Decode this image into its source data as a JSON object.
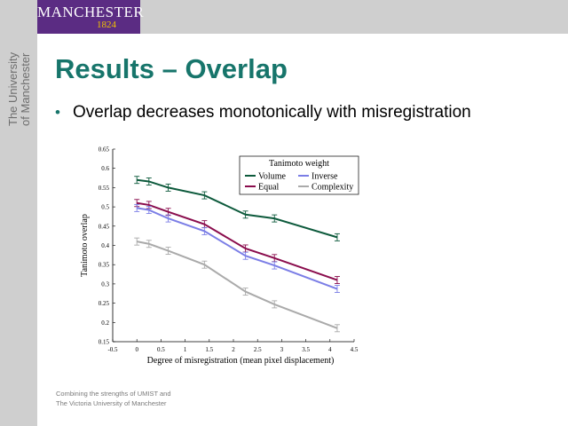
{
  "brand": {
    "logo_name": "MANCHESTER",
    "logo_year": "1824",
    "vertical_line1": "The University",
    "vertical_line2": "of Manchester"
  },
  "slide": {
    "title": "Results – Overlap",
    "bullet": "Overlap decreases monotonically with misregistration"
  },
  "footer": {
    "line1": "Combining the strengths of UMIST and",
    "line2": "The Victoria University of Manchester"
  },
  "colors": {
    "title": "#17756b",
    "bar": "#cfcfcf",
    "logo_bg": "#5b2c83",
    "logo_year": "#f2c200"
  },
  "chart_data": {
    "type": "line",
    "xlabel": "Degree of misregistration (mean pixel displacement)",
    "ylabel": "Tanimoto overlap",
    "xlim": [
      -0.5,
      4.5
    ],
    "ylim": [
      0.15,
      0.65
    ],
    "xticks": [
      "-0.5",
      "0",
      "0.5",
      "1",
      "1.5",
      "2",
      "2.5",
      "3",
      "3.5",
      "4",
      "4.5"
    ],
    "yticks": [
      "0.15",
      "0.2",
      "0.25",
      "0.3",
      "0.35",
      "0.4",
      "0.45",
      "0.5",
      "0.55",
      "0.6",
      "0.65"
    ],
    "x": [
      0,
      0.25,
      0.65,
      1.4,
      2.25,
      2.85,
      4.15
    ],
    "legend_title": "Tanimoto weight",
    "legend_position": "top-right",
    "series": [
      {
        "name": "Volume",
        "color": "#0d5a3c",
        "values": [
          0.57,
          0.566,
          0.55,
          0.53,
          0.48,
          0.47,
          0.421
        ]
      },
      {
        "name": "Equal",
        "color": "#8a0d4d",
        "values": [
          0.51,
          0.505,
          0.487,
          0.455,
          0.392,
          0.367,
          0.31
        ]
      },
      {
        "name": "Inverse",
        "color": "#7b7ee6",
        "values": [
          0.497,
          0.492,
          0.47,
          0.437,
          0.373,
          0.348,
          0.287
        ]
      },
      {
        "name": "Complexity",
        "color": "#aaaaaa",
        "values": [
          0.41,
          0.404,
          0.386,
          0.35,
          0.28,
          0.247,
          0.185
        ]
      }
    ]
  }
}
